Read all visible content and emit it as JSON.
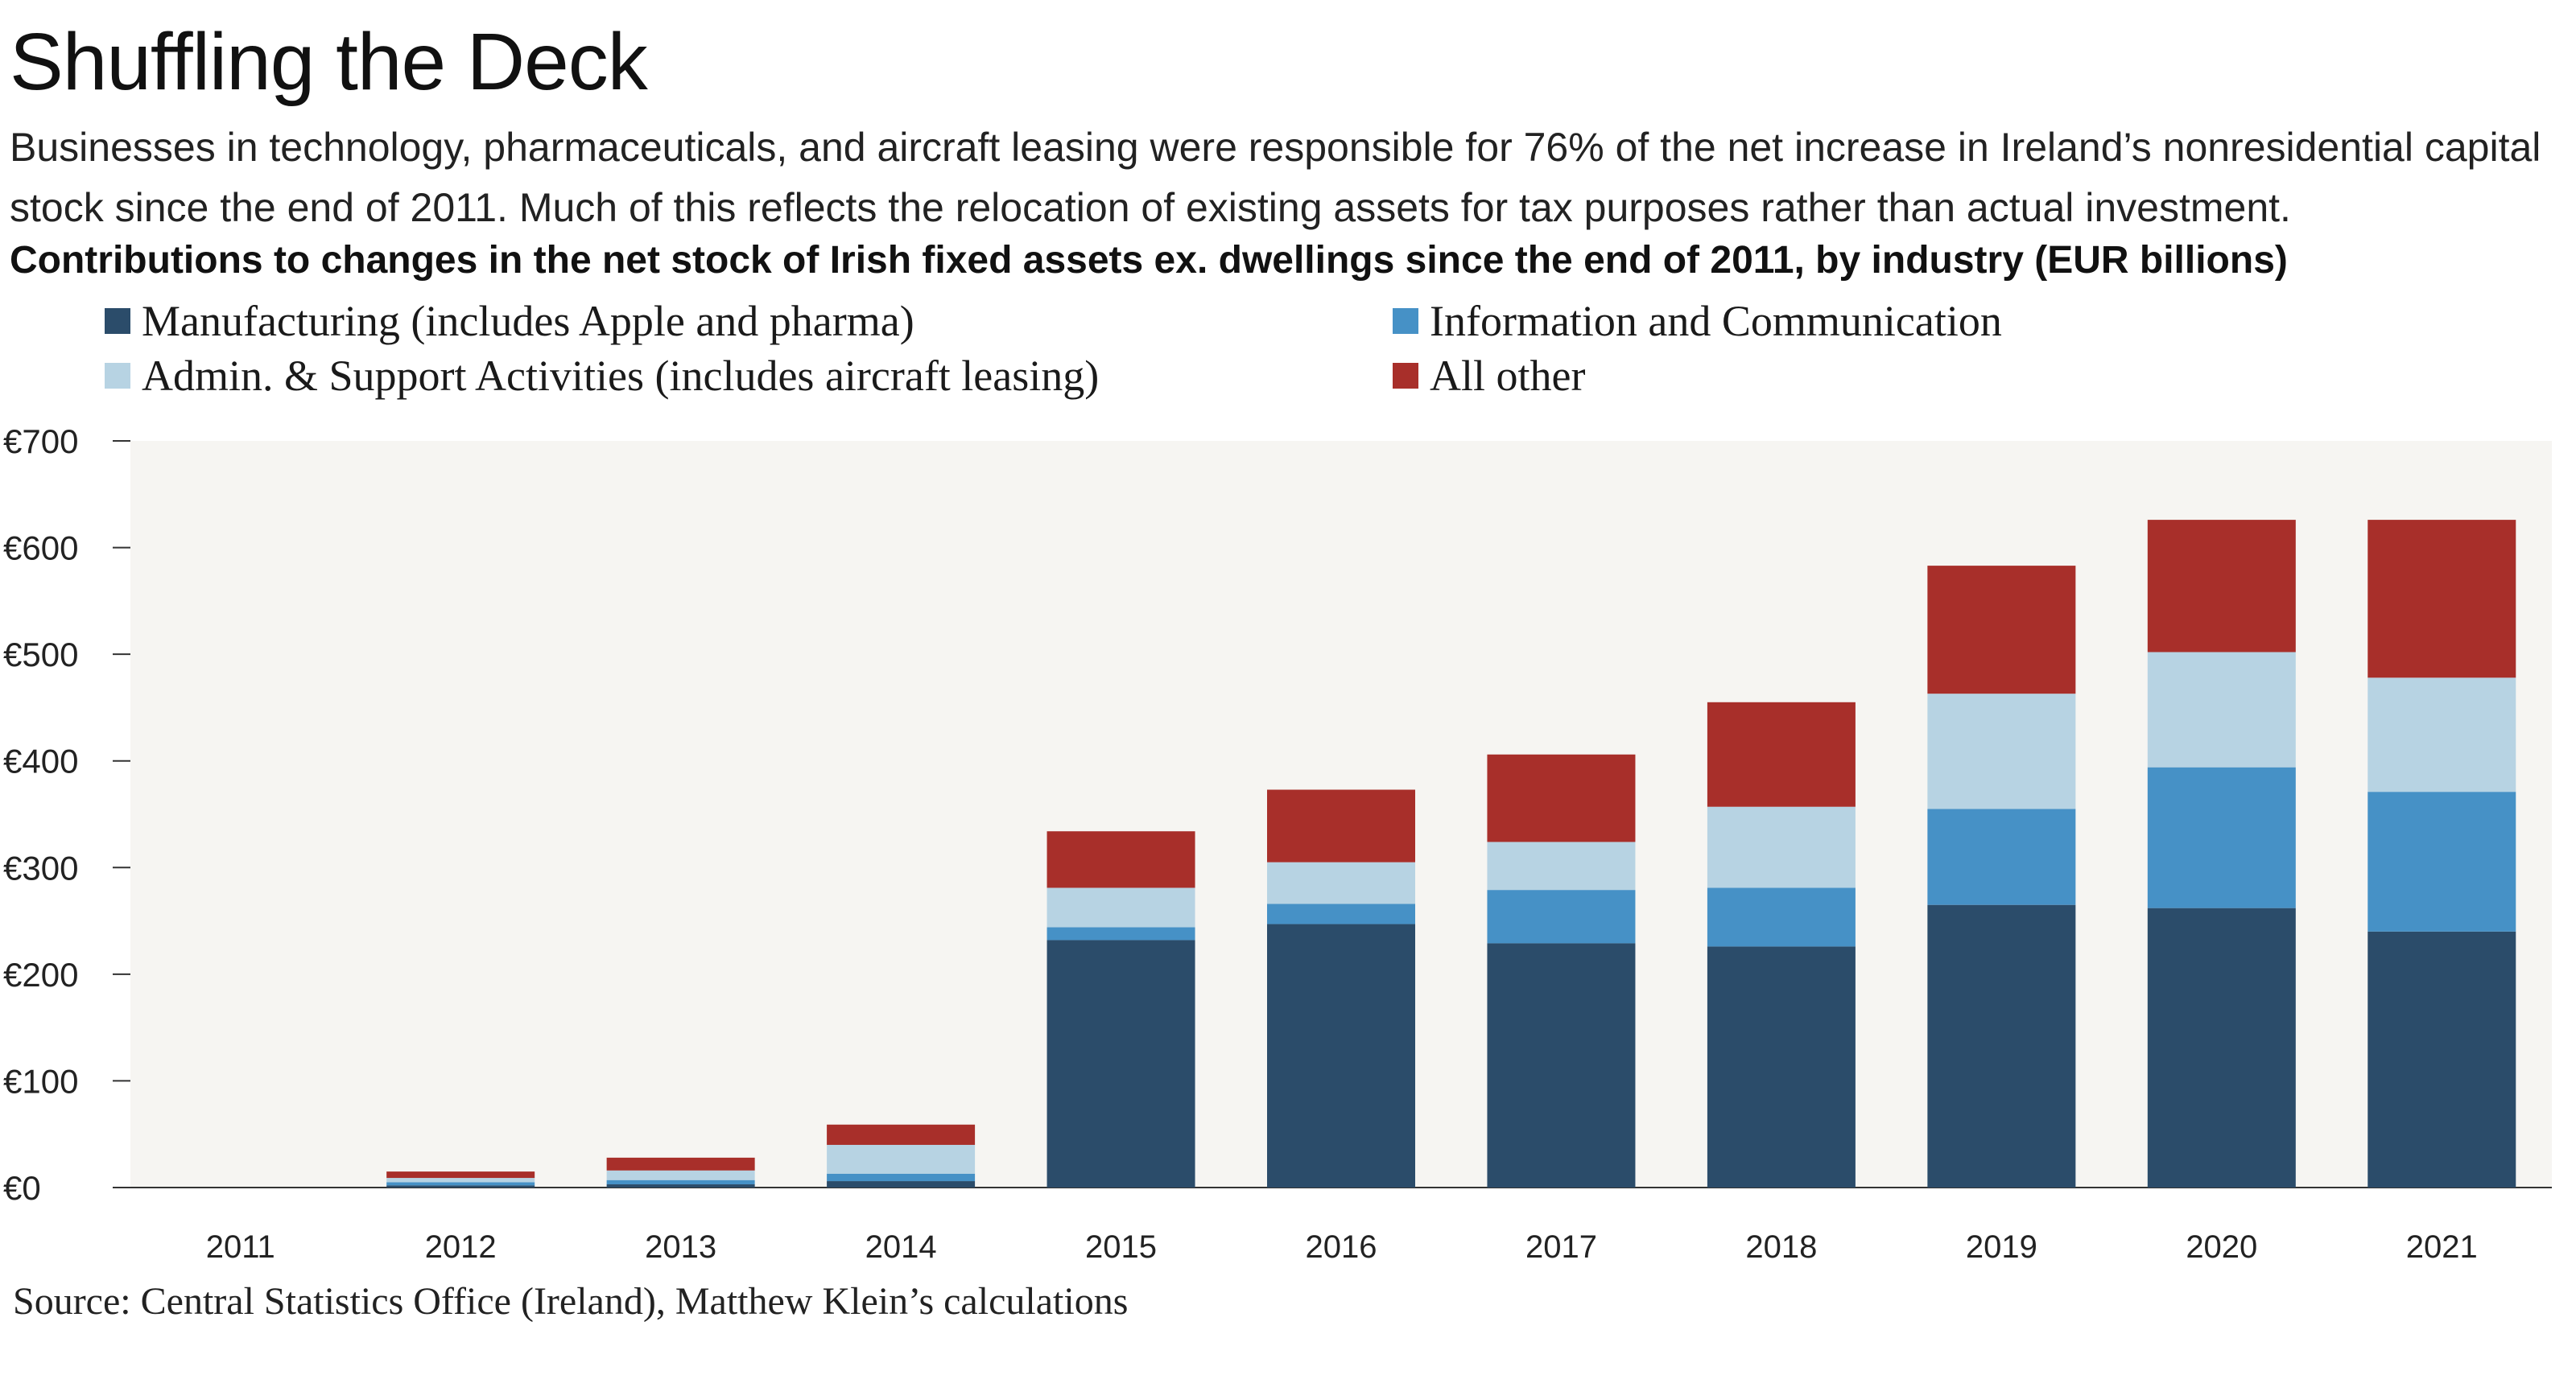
{
  "header": {
    "title": "Shuffling the Deck",
    "subtitle": "Businesses in technology, pharmaceuticals, and aircraft leasing were responsible for 76% of the net increase in Ireland’s nonresidential capital stock since the end of 2011. Much of this reflects the relocation of existing assets for tax purposes rather than actual investment."
  },
  "chart_data": {
    "type": "bar",
    "stacked": true,
    "title": "Contributions to changes in the net stock of Irish fixed assets ex. dwellings since the end of 2011, by industry (EUR billions)",
    "xlabel": "",
    "ylabel": "",
    "categories": [
      "2011",
      "2012",
      "2013",
      "2014",
      "2015",
      "2016",
      "2017",
      "2018",
      "2019",
      "2020",
      "2021"
    ],
    "series": [
      {
        "name": "Manufacturing (includes Apple and pharma)",
        "color": "#2b4c6a",
        "values": [
          0,
          2,
          3,
          6,
          232,
          247,
          229,
          226,
          265,
          262,
          240
        ]
      },
      {
        "name": "Information and Communication",
        "color": "#4691c6",
        "values": [
          0,
          3,
          4,
          7,
          12,
          19,
          50,
          55,
          90,
          132,
          131
        ]
      },
      {
        "name": "Admin. & Support Activities (includes aircraft leasing)",
        "color": "#b7d3e3",
        "values": [
          0,
          4,
          9,
          27,
          37,
          39,
          45,
          76,
          108,
          108,
          107
        ]
      },
      {
        "name": "All other",
        "color": "#a82f2a",
        "values": [
          0,
          6,
          12,
          19,
          53,
          68,
          82,
          98,
          120,
          124,
          148
        ]
      }
    ],
    "ylim": [
      0,
      700
    ],
    "yticks": [
      {
        "value": 0,
        "label": "€0"
      },
      {
        "value": 100,
        "label": "€100"
      },
      {
        "value": 200,
        "label": "€200"
      },
      {
        "value": 300,
        "label": "€300"
      },
      {
        "value": 400,
        "label": "€400"
      },
      {
        "value": 500,
        "label": "€500"
      },
      {
        "value": 600,
        "label": "€600"
      },
      {
        "value": 700,
        "label": "€700"
      }
    ],
    "grid": false,
    "legend_position": "top-left",
    "plot_background": "#f6f5f2"
  },
  "source": "Source: Central Statistics Office (Ireland), Matthew Klein’s calculations"
}
